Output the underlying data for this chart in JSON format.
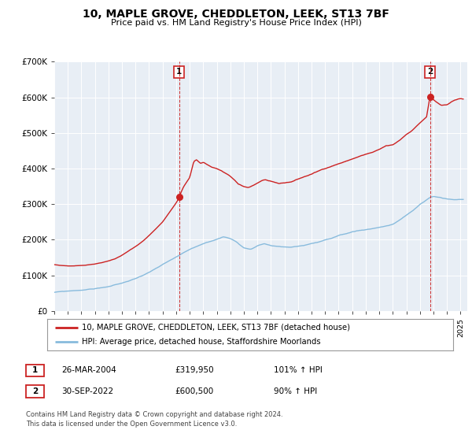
{
  "title": "10, MAPLE GROVE, CHEDDLETON, LEEK, ST13 7BF",
  "subtitle": "Price paid vs. HM Land Registry's House Price Index (HPI)",
  "house_color": "#cc2222",
  "hpi_color": "#88bbdd",
  "plot_bg": "#e8eef5",
  "ylim": [
    0,
    700000
  ],
  "xlim_start": 1995.0,
  "xlim_end": 2025.5,
  "sale1_x": 2004.22,
  "sale1_y": 319950,
  "sale2_x": 2022.75,
  "sale2_y": 600500,
  "sale1_label": "1",
  "sale2_label": "2",
  "legend_house": "10, MAPLE GROVE, CHEDDLETON, LEEK, ST13 7BF (detached house)",
  "legend_hpi": "HPI: Average price, detached house, Staffordshire Moorlands",
  "annotation1_date": "26-MAR-2004",
  "annotation1_price": "£319,950",
  "annotation1_hpi": "101% ↑ HPI",
  "annotation2_date": "30-SEP-2022",
  "annotation2_price": "£600,500",
  "annotation2_hpi": "90% ↑ HPI",
  "footer": "Contains HM Land Registry data © Crown copyright and database right 2024.\nThis data is licensed under the Open Government Licence v3.0.",
  "yticks": [
    0,
    100000,
    200000,
    300000,
    400000,
    500000,
    600000,
    700000
  ],
  "ytick_labels": [
    "£0",
    "£100K",
    "£200K",
    "£300K",
    "£400K",
    "£500K",
    "£600K",
    "£700K"
  ]
}
